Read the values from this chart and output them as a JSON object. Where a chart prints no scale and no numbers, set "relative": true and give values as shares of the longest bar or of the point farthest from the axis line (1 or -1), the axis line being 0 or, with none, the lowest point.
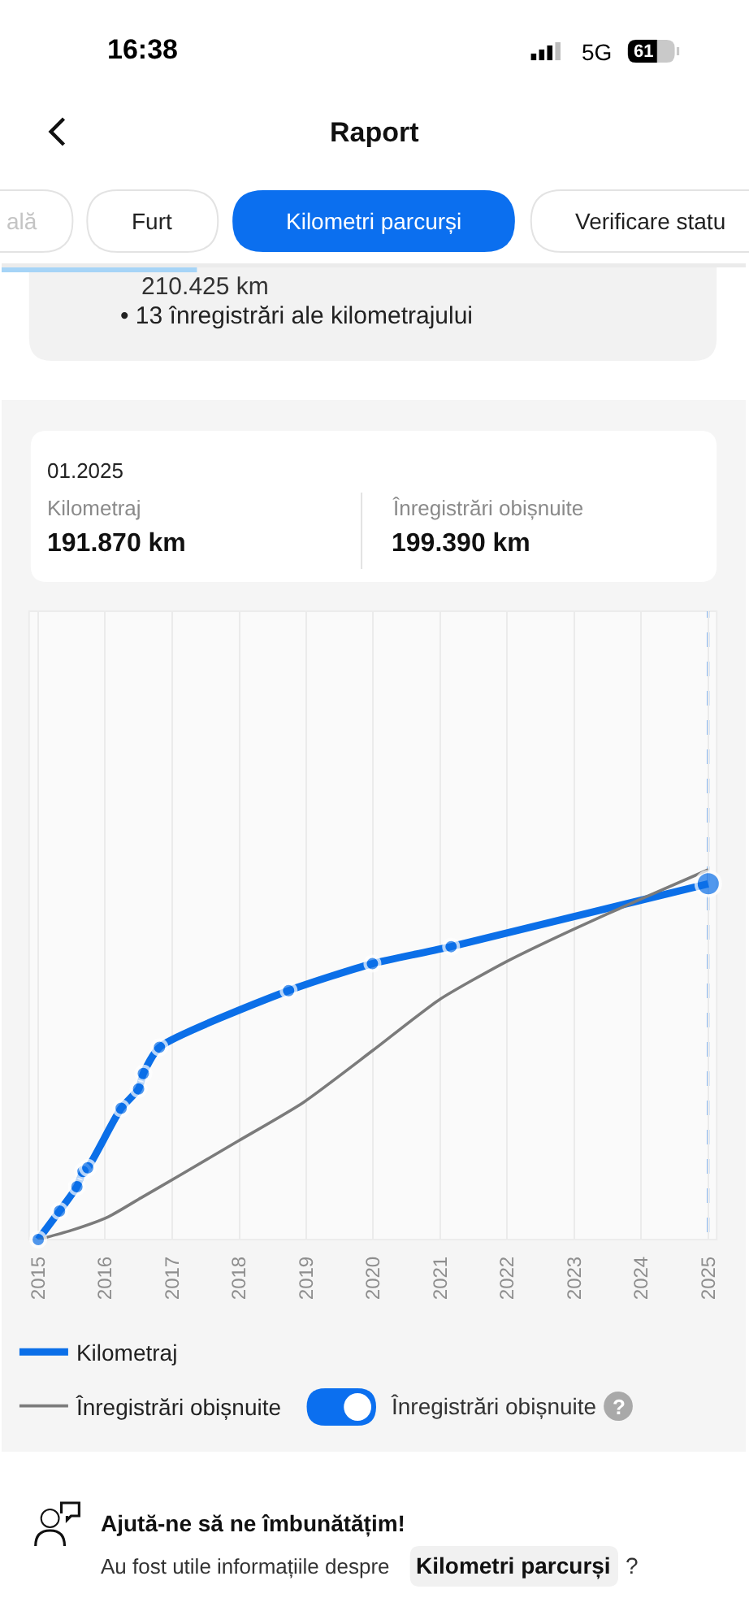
{
  "chart_data": {
    "type": "line",
    "relative": true,
    "series": [
      {
        "name": "Kilometraj",
        "color": "#0b6fe8",
        "marker": "circle",
        "x": [
          "2015-01-01",
          "2015-04-27",
          "2015-07-31",
          "2015-09-02",
          "2015-09-28",
          "2016-03-28",
          "2016-07-01",
          "2016-07-27",
          "2016-10-23",
          "2018-09-27",
          "2019-12-28",
          "2021-03-01",
          "2025-01-01"
        ],
        "values": [
          0,
          0.077,
          0.143,
          0.184,
          0.194,
          0.355,
          0.407,
          0.449,
          0.52,
          0.673,
          0.746,
          0.792,
          0.962
        ]
      },
      {
        "name": "Înregistrări obișnuite",
        "color": "#7b7b7b",
        "marker": "none",
        "x": [
          "2015-01-01",
          "2015-07-01",
          "2016-01-20",
          "2016-07-15",
          "2017-02-05",
          "2017-12-28",
          "2018-12-14",
          "2020-01-01",
          "2020-12-25",
          "2021-12-25",
          "2022-12-28",
          "2023-12-28",
          "2025-01-01"
        ],
        "values": [
          0,
          0.025,
          0.062,
          0.113,
          0.172,
          0.267,
          0.37,
          0.512,
          0.648,
          0.751,
          0.839,
          0.92,
          1
        ]
      }
    ],
    "xlim": [
      "2014-11-12",
      "2025-02-16"
    ],
    "xticks": [
      "2015",
      "2016",
      "2017",
      "2018",
      "2019",
      "2020",
      "2021",
      "2022",
      "2023",
      "2024",
      "2025"
    ],
    "grid": "x",
    "legend": "bottom left",
    "tick_labels": "x",
    "ref_lines": [
      {
        "axis": "x",
        "value": "2025-01-01",
        "color": "#0b6fe8",
        "line_style": "dashed"
      }
    ],
    "annotations": [
      "16:38",
      "5G",
      "61",
      "Raport",
      "ală",
      "Furt",
      "Kilometri parcurși",
      "Verificare statu",
      "210.425 km",
      "• 13 înregistrări ale kilometrajului",
      "01.2025",
      "Kilometraj",
      "191.870 km",
      "Înregistrări obișnuite",
      "199.390 km",
      "Înregistrări obișnuite",
      "?",
      "Ajută-ne să ne îmbunătățim!",
      "Au fost utile informațiile despre",
      "Kilometri parcurși",
      "?"
    ]
  }
}
